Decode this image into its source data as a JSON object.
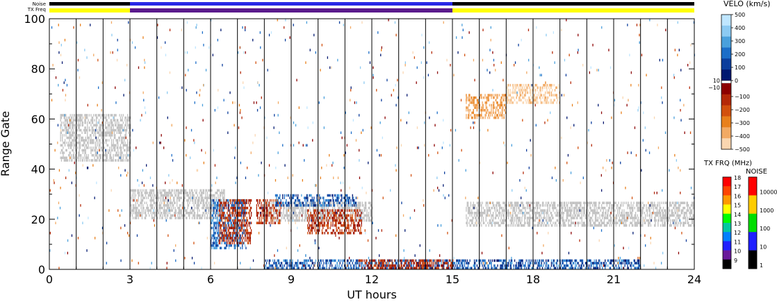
{
  "chart_data": {
    "type": "heatmap",
    "title": "",
    "xlabel": "UT hours",
    "ylabel": "Range Gate",
    "xlim": [
      0,
      24
    ],
    "ylim": [
      0,
      100
    ],
    "x_ticks": [
      0,
      3,
      6,
      9,
      12,
      15,
      18,
      21,
      24
    ],
    "x_tick_labels": [
      "0",
      "3",
      "6",
      "9",
      "12",
      "15",
      "18",
      "21",
      "24"
    ],
    "y_ticks": [
      0,
      20,
      40,
      60,
      80,
      100
    ],
    "y_tick_labels": [
      "0",
      "20",
      "40",
      "60",
      "80",
      "100"
    ],
    "hour_gridlines": true,
    "status_bars": {
      "noise_label": "Noise",
      "txfreq_label": "TX Freq",
      "noise_segments": [
        {
          "start": 0,
          "end": 3,
          "color": "#000000"
        },
        {
          "start": 3,
          "end": 15,
          "color": "#2828e6"
        },
        {
          "start": 15,
          "end": 24,
          "color": "#000000"
        }
      ],
      "txfreq_segments": [
        {
          "start": 0,
          "end": 3,
          "color": "#ffff00"
        },
        {
          "start": 3,
          "end": 15,
          "color": "#5a1a8c"
        },
        {
          "start": 15,
          "end": 24,
          "color": "#ffff00"
        }
      ]
    },
    "velocity_scale": {
      "title": "VELO (km/s)",
      "unit": "km/s",
      "range": [
        -500,
        500
      ],
      "ticks": [
        500,
        400,
        300,
        200,
        100,
        0,
        -100,
        -200,
        -300,
        -400,
        -500
      ],
      "tick_labels": [
        "500",
        "400",
        "300",
        "200",
        "100",
        "0",
        "−100",
        "−200",
        "−300",
        "−400",
        "−500"
      ],
      "near_zero_labels": [
        "10",
        "−10"
      ],
      "positive_colors": [
        "#bfe6ff",
        "#8ccaf2",
        "#4aa0dc",
        "#1c6ec8",
        "#0c3e9c",
        "#001870"
      ],
      "negative_colors": [
        "#8c0000",
        "#b42808",
        "#d2500e",
        "#e8801c",
        "#f2aa64",
        "#fad6b0"
      ]
    },
    "txfreq_scale": {
      "title": "TX FRQ (MHz)",
      "tick_labels": [
        "18",
        "17",
        "16",
        "15",
        "14",
        "13",
        "12",
        "11",
        "10",
        "9"
      ],
      "colors": [
        "#ff0000",
        "#ff4400",
        "#ff9900",
        "#ffff00",
        "#00ff00",
        "#00c8a0",
        "#0080ff",
        "#2020ff",
        "#6a1a9a",
        "#000000"
      ]
    },
    "noise_scale": {
      "title": "NOISE",
      "tick_labels": [
        "10000",
        "1000",
        "100",
        "10",
        "1"
      ],
      "colors": [
        "#ff0000",
        "#ffcc00",
        "#00dd00",
        "#2020ff",
        "#000000"
      ]
    },
    "ground_scatter_color": "#c0c0c0",
    "echo_regions": [
      {
        "name": "early ground scatter",
        "t0": 0.4,
        "t1": 3.0,
        "g0": 43,
        "g1": 62,
        "kind": "ground"
      },
      {
        "name": "sweeping ground scatter",
        "t0": 3.0,
        "t1": 6.5,
        "g0": 20,
        "g1": 32,
        "kind": "ground"
      },
      {
        "name": "mid ground scatter",
        "t0": 8.0,
        "t1": 12.0,
        "g0": 19,
        "g1": 27,
        "kind": "ground"
      },
      {
        "name": "late ground scatter",
        "t0": 15.5,
        "t1": 24.0,
        "g0": 17,
        "g1": 27,
        "kind": "ground"
      },
      {
        "name": "morning flow toward radar",
        "t0": 6.0,
        "t1": 7.3,
        "g0": 8,
        "g1": 28,
        "kind": "pos",
        "vmin": 150,
        "vmax": 420
      },
      {
        "name": "away flow block",
        "t0": 6.3,
        "t1": 7.5,
        "g0": 10,
        "g1": 28,
        "kind": "neg",
        "vmin": -200,
        "vmax": -60
      },
      {
        "name": "away flow block 2",
        "t0": 7.7,
        "t1": 8.6,
        "g0": 18,
        "g1": 28,
        "kind": "neg",
        "vmin": -220,
        "vmax": -60
      },
      {
        "name": "toward flow band",
        "t0": 8.4,
        "t1": 11.4,
        "g0": 25,
        "g1": 30,
        "kind": "pos",
        "vmin": 200,
        "vmax": 450
      },
      {
        "name": "away flow band",
        "t0": 9.6,
        "t1": 11.6,
        "g0": 14,
        "g1": 24,
        "kind": "neg",
        "vmin": -220,
        "vmax": -60
      },
      {
        "name": "near-range toward flow",
        "t0": 8.0,
        "t1": 22.0,
        "g0": 0,
        "g1": 4,
        "kind": "pos",
        "vmin": 200,
        "vmax": 480
      },
      {
        "name": "near-range away flow",
        "t0": 11.5,
        "t1": 15.0,
        "g0": 0,
        "g1": 4,
        "kind": "neg",
        "vmin": -200,
        "vmax": -50
      },
      {
        "name": "far away flow",
        "t0": 17.0,
        "t1": 19.0,
        "g0": 66,
        "g1": 74,
        "kind": "neg",
        "vmin": -480,
        "vmax": -380
      },
      {
        "name": "far away flow 2",
        "t0": 15.5,
        "t1": 17.0,
        "g0": 60,
        "g1": 70,
        "kind": "neg",
        "vmin": -400,
        "vmax": -300
      }
    ]
  }
}
